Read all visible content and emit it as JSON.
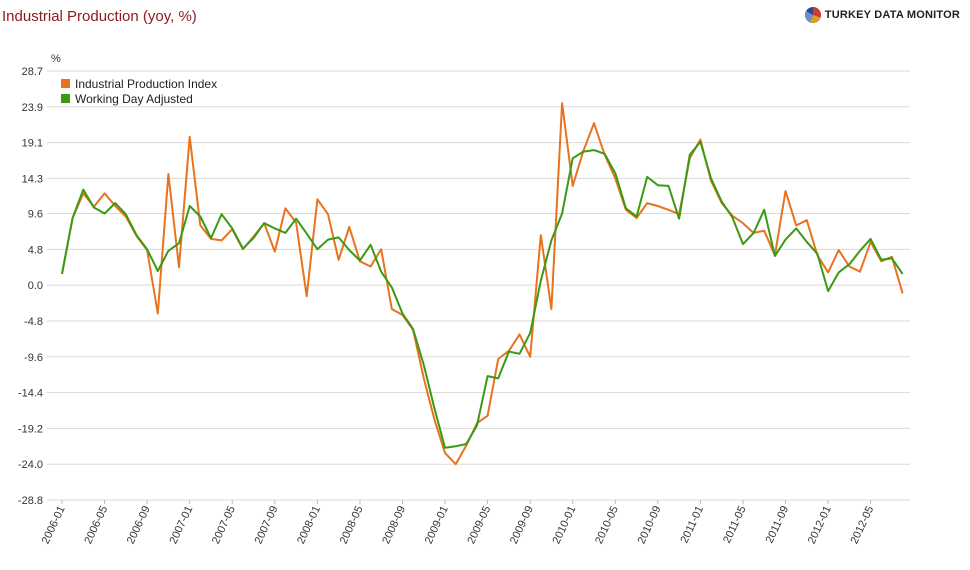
{
  "header": {
    "title": "Industrial Production (yoy, %)",
    "brand": "TURKEY DATA MONITOR",
    "brand_logo": "pie-globe-logo"
  },
  "chart_data": {
    "type": "line",
    "ylabel": "%",
    "ylim": [
      -28.8,
      28.7
    ],
    "y_ticks": [
      28.7,
      23.9,
      19.1,
      14.3,
      9.6,
      4.8,
      0.0,
      -4.8,
      -9.6,
      -14.4,
      -19.2,
      -24.0,
      -28.8
    ],
    "y_tick_labels": [
      "28.7",
      "23.9",
      "19.1",
      "14.3",
      "9.6",
      "4.8",
      "0.0",
      "-4.8",
      "-9.6",
      "-14.4",
      "-19.2",
      "-24.0",
      "-28.8"
    ],
    "x_tick_labels": [
      "2006-01",
      "2006-05",
      "2006-09",
      "2007-01",
      "2007-05",
      "2007-09",
      "2008-01",
      "2008-05",
      "2008-09",
      "2009-01",
      "2009-05",
      "2009-09",
      "2010-01",
      "2010-05",
      "2010-09",
      "2011-01",
      "2011-05",
      "2011-09",
      "2012-01",
      "2012-05"
    ],
    "x_start": "2006-01",
    "x_end": "2012-09",
    "grid": true,
    "legend_position": "top-left",
    "series": [
      {
        "name": "Industrial Production Index",
        "color": "#e8731f",
        "values": [
          1.5,
          9.0,
          12.3,
          10.5,
          12.3,
          10.6,
          9.2,
          6.6,
          4.7,
          -3.8,
          14.9,
          2.4,
          19.9,
          8.0,
          6.2,
          6.0,
          7.5,
          4.8,
          6.5,
          8.3,
          4.5,
          10.3,
          8.4,
          -1.5,
          11.5,
          9.5,
          3.4,
          7.8,
          3.2,
          2.5,
          4.8,
          -3.2,
          -4.0,
          -6.0,
          -12.5,
          -18.0,
          -22.5,
          -24.0,
          -21.5,
          -18.5,
          -17.5,
          -9.9,
          -8.8,
          -6.6,
          -9.6,
          6.7,
          -3.2,
          24.4,
          13.3,
          18.0,
          21.7,
          17.5,
          14.3,
          10.1,
          9.0,
          11.0,
          10.6,
          10.1,
          9.5,
          17.0,
          19.5,
          14.0,
          11.0,
          9.3,
          8.3,
          7.0,
          7.3,
          4.0,
          12.6,
          8.0,
          8.7,
          4.0,
          1.7,
          4.7,
          2.5,
          1.8,
          5.8,
          3.2,
          3.8,
          -1.1
        ],
        "values_note": "monthly from 2006-01"
      },
      {
        "name": "Working Day Adjusted",
        "color": "#3a9a14",
        "values": [
          1.5,
          9.0,
          12.8,
          10.4,
          9.6,
          11.0,
          9.5,
          6.7,
          4.8,
          1.9,
          4.6,
          5.6,
          10.6,
          9.2,
          6.3,
          9.5,
          7.6,
          4.9,
          6.3,
          8.3,
          7.6,
          7.0,
          8.9,
          6.9,
          4.8,
          6.1,
          6.4,
          4.7,
          3.3,
          5.4,
          1.8,
          -0.3,
          -3.8,
          -5.9,
          -10.7,
          -16.5,
          -21.8,
          -21.6,
          -21.3,
          -18.8,
          -12.2,
          -12.5,
          -8.9,
          -9.2,
          -6.4,
          0.6,
          6.0,
          9.6,
          17.0,
          17.9,
          18.1,
          17.6,
          15.0,
          10.3,
          9.2,
          14.5,
          13.4,
          13.3,
          8.9,
          17.5,
          19.2,
          14.3,
          11.2,
          9.1,
          5.5,
          7.0,
          10.1,
          3.9,
          6.1,
          7.6,
          5.8,
          4.2,
          -0.8,
          1.7,
          2.8,
          4.6,
          6.2,
          3.4,
          3.6,
          1.5
        ],
        "values_note": "monthly from 2006-01"
      }
    ]
  }
}
